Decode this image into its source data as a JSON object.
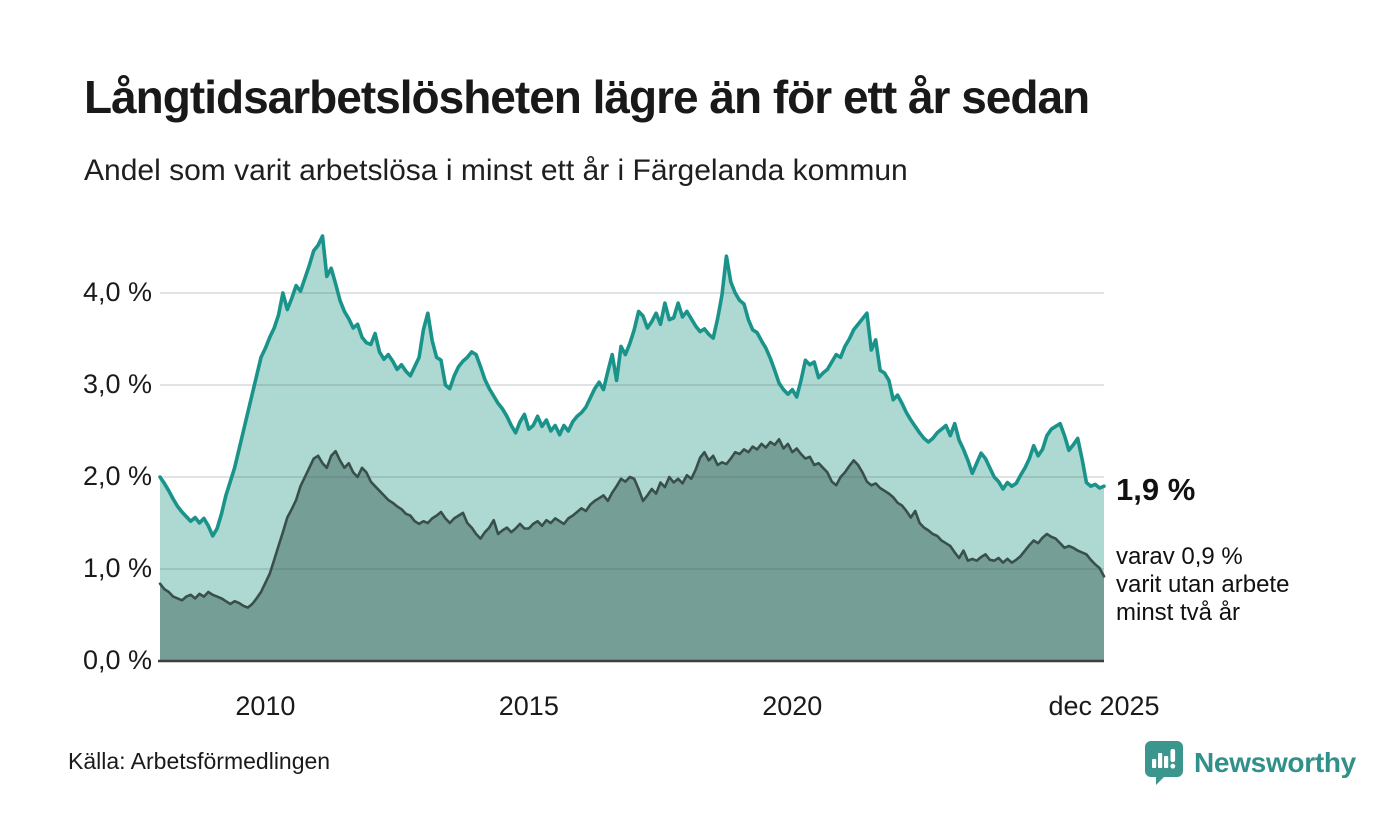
{
  "header": {
    "title": "Långtidsarbetslösheten lägre än för ett år sedan",
    "subtitle": "Andel som varit arbetslösa i minst ett år i Färgelanda kommun"
  },
  "chart_data": {
    "type": "area",
    "unit": "%",
    "frequency": "monthly",
    "x_start": "2008-01",
    "x_end": "2025-12",
    "x_domain_years": [
      2008.0,
      2025.9167
    ],
    "ylim": [
      0,
      4.7
    ],
    "grid": "horizontal",
    "yticks": [
      {
        "value": 0,
        "label": "0,0 %"
      },
      {
        "value": 1,
        "label": "1,0 %"
      },
      {
        "value": 2,
        "label": "2,0 %"
      },
      {
        "value": 3,
        "label": "3,0 %"
      },
      {
        "value": 4,
        "label": "4,0 %"
      }
    ],
    "xticks": [
      {
        "position": 2010.0,
        "label": "2010"
      },
      {
        "position": 2015.0,
        "label": "2015"
      },
      {
        "position": 2020.0,
        "label": "2020"
      },
      {
        "position": 2025.9167,
        "label": "dec 2025"
      }
    ],
    "series": [
      {
        "name": "Andel arbetslösa minst ett år",
        "line_color": "#1a948a",
        "fill_color": "#aed8d2",
        "line_width": 3.6,
        "values": [
          2.0,
          1.93,
          1.85,
          1.76,
          1.68,
          1.62,
          1.57,
          1.52,
          1.56,
          1.5,
          1.55,
          1.47,
          1.36,
          1.44,
          1.6,
          1.8,
          1.95,
          2.1,
          2.3,
          2.5,
          2.7,
          2.9,
          3.1,
          3.3,
          3.4,
          3.52,
          3.62,
          3.76,
          4.0,
          3.82,
          3.94,
          4.08,
          4.02,
          4.16,
          4.3,
          4.46,
          4.52,
          4.62,
          4.18,
          4.27,
          4.1,
          3.92,
          3.8,
          3.72,
          3.62,
          3.66,
          3.52,
          3.46,
          3.44,
          3.56,
          3.36,
          3.28,
          3.33,
          3.26,
          3.17,
          3.22,
          3.15,
          3.1,
          3.2,
          3.3,
          3.6,
          3.78,
          3.48,
          3.3,
          3.27,
          3.0,
          2.96,
          3.1,
          3.2,
          3.26,
          3.3,
          3.36,
          3.33,
          3.2,
          3.06,
          2.96,
          2.88,
          2.8,
          2.74,
          2.66,
          2.56,
          2.48,
          2.6,
          2.68,
          2.52,
          2.56,
          2.66,
          2.55,
          2.62,
          2.5,
          2.56,
          2.46,
          2.56,
          2.5,
          2.6,
          2.66,
          2.7,
          2.76,
          2.86,
          2.96,
          3.03,
          2.95,
          3.15,
          3.33,
          3.05,
          3.42,
          3.33,
          3.45,
          3.6,
          3.8,
          3.75,
          3.62,
          3.69,
          3.78,
          3.66,
          3.89,
          3.71,
          3.73,
          3.89,
          3.74,
          3.8,
          3.72,
          3.64,
          3.58,
          3.61,
          3.55,
          3.51,
          3.72,
          3.98,
          4.4,
          4.12,
          4.0,
          3.92,
          3.88,
          3.71,
          3.6,
          3.57,
          3.48,
          3.4,
          3.29,
          3.16,
          3.02,
          2.95,
          2.9,
          2.95,
          2.87,
          3.05,
          3.27,
          3.22,
          3.25,
          3.08,
          3.13,
          3.17,
          3.25,
          3.33,
          3.3,
          3.42,
          3.5,
          3.6,
          3.66,
          3.72,
          3.78,
          3.38,
          3.49,
          3.16,
          3.13,
          3.05,
          2.84,
          2.89,
          2.8,
          2.7,
          2.62,
          2.55,
          2.48,
          2.42,
          2.38,
          2.42,
          2.48,
          2.52,
          2.56,
          2.45,
          2.58,
          2.4,
          2.3,
          2.18,
          2.04,
          2.15,
          2.26,
          2.2,
          2.1,
          2.0,
          1.95,
          1.87,
          1.94,
          1.9,
          1.93,
          2.02,
          2.1,
          2.2,
          2.34,
          2.23,
          2.3,
          2.45,
          2.52,
          2.55,
          2.58,
          2.45,
          2.29,
          2.35,
          2.42,
          2.2,
          1.94,
          1.9,
          1.92,
          1.88,
          1.9
        ]
      },
      {
        "name": "Andel arbetslösa minst två år",
        "line_color": "#39504a",
        "fill_color": "#759e97",
        "line_width": 2.6,
        "values": [
          0.84,
          0.78,
          0.75,
          0.7,
          0.68,
          0.66,
          0.7,
          0.72,
          0.68,
          0.73,
          0.7,
          0.75,
          0.72,
          0.7,
          0.68,
          0.65,
          0.62,
          0.65,
          0.63,
          0.6,
          0.58,
          0.62,
          0.68,
          0.75,
          0.85,
          0.95,
          1.1,
          1.25,
          1.4,
          1.56,
          1.65,
          1.75,
          1.9,
          2.0,
          2.1,
          2.2,
          2.23,
          2.15,
          2.1,
          2.23,
          2.28,
          2.18,
          2.1,
          2.15,
          2.05,
          2.0,
          2.1,
          2.05,
          1.95,
          1.9,
          1.85,
          1.8,
          1.75,
          1.72,
          1.68,
          1.65,
          1.6,
          1.58,
          1.52,
          1.49,
          1.52,
          1.5,
          1.55,
          1.58,
          1.62,
          1.55,
          1.5,
          1.55,
          1.58,
          1.61,
          1.5,
          1.45,
          1.38,
          1.33,
          1.4,
          1.45,
          1.53,
          1.38,
          1.42,
          1.45,
          1.4,
          1.44,
          1.49,
          1.44,
          1.44,
          1.49,
          1.52,
          1.47,
          1.53,
          1.5,
          1.55,
          1.52,
          1.49,
          1.55,
          1.58,
          1.62,
          1.66,
          1.63,
          1.7,
          1.74,
          1.77,
          1.8,
          1.74,
          1.83,
          1.9,
          1.98,
          1.95,
          2.0,
          1.98,
          1.87,
          1.74,
          1.8,
          1.87,
          1.82,
          1.94,
          1.89,
          2.0,
          1.94,
          1.98,
          1.93,
          2.02,
          1.98,
          2.08,
          2.21,
          2.27,
          2.18,
          2.23,
          2.13,
          2.16,
          2.14,
          2.2,
          2.27,
          2.25,
          2.3,
          2.27,
          2.33,
          2.3,
          2.36,
          2.32,
          2.38,
          2.35,
          2.41,
          2.31,
          2.36,
          2.27,
          2.31,
          2.25,
          2.2,
          2.22,
          2.13,
          2.15,
          2.1,
          2.05,
          1.95,
          1.91,
          2.0,
          2.05,
          2.12,
          2.18,
          2.13,
          2.05,
          1.95,
          1.91,
          1.93,
          1.88,
          1.85,
          1.82,
          1.78,
          1.72,
          1.69,
          1.63,
          1.56,
          1.63,
          1.5,
          1.45,
          1.42,
          1.38,
          1.36,
          1.31,
          1.28,
          1.25,
          1.18,
          1.12,
          1.2,
          1.09,
          1.11,
          1.09,
          1.13,
          1.16,
          1.1,
          1.09,
          1.12,
          1.07,
          1.11,
          1.07,
          1.1,
          1.14,
          1.2,
          1.26,
          1.31,
          1.28,
          1.34,
          1.38,
          1.35,
          1.33,
          1.28,
          1.23,
          1.25,
          1.23,
          1.2,
          1.18,
          1.16,
          1.1,
          1.05,
          1.01,
          0.92
        ]
      }
    ]
  },
  "annotations": {
    "value": "1,9 %",
    "detail": "varav 0,9 %\nvarit utan arbete\nminst två år"
  },
  "footer": {
    "source": "Källa: Arbetsförmedlingen",
    "brand": "Newsworthy"
  },
  "colors": {
    "series1_line": "#1a948a",
    "series1_fill": "#aed8d2",
    "series2_line": "#39504a",
    "series2_fill": "#759e97",
    "grid": "rgba(70,80,85,0.16)",
    "baseline": "#3f3f3f",
    "brand_teal": "#30908a"
  }
}
